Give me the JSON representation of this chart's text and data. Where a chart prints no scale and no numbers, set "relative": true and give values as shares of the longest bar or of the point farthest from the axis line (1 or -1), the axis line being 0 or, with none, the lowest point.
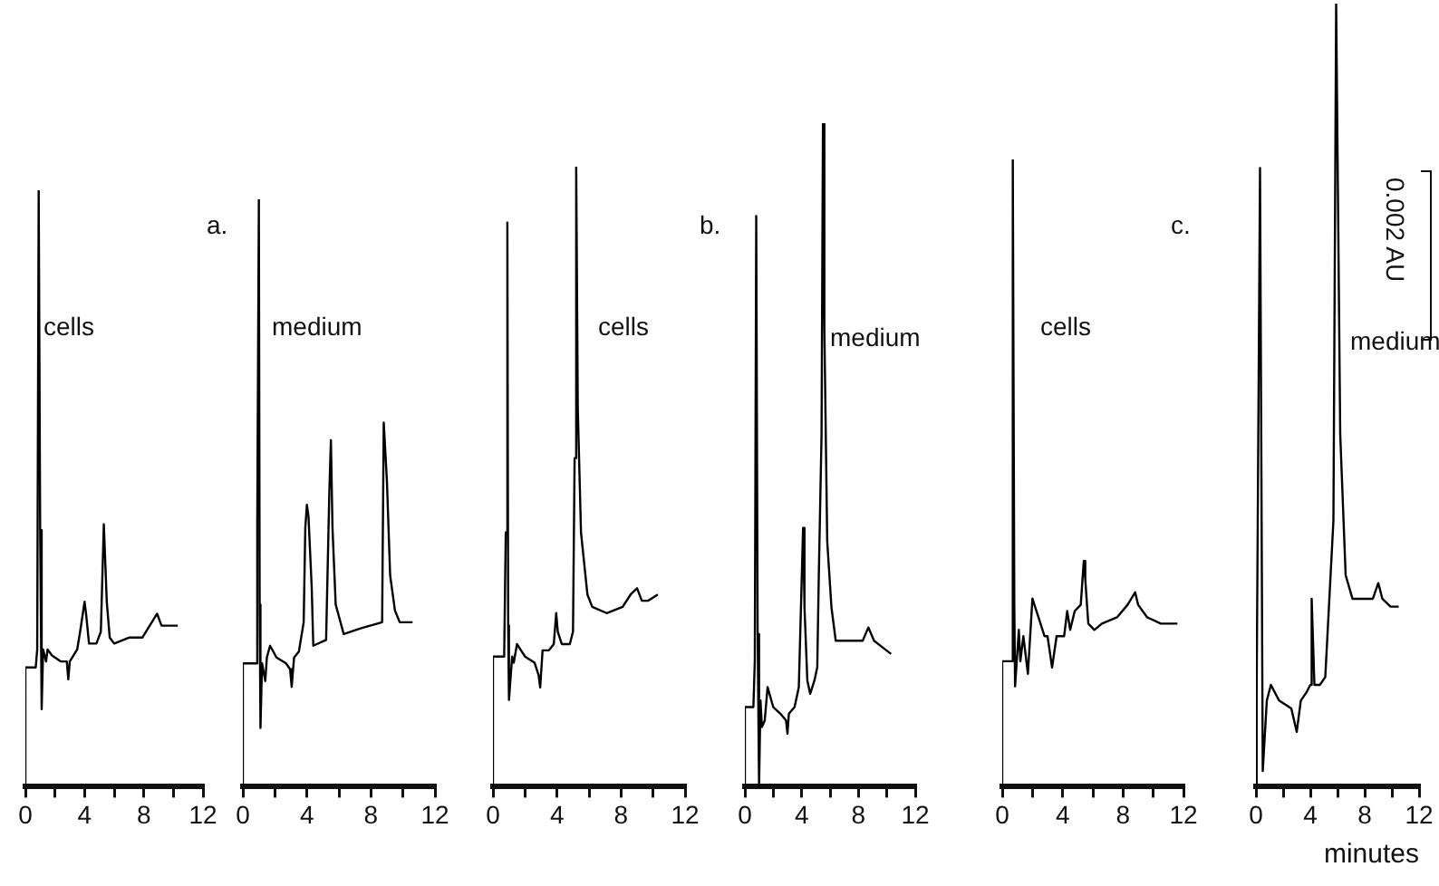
{
  "chart_data": [
    {
      "type": "line",
      "relative": true,
      "x": [
        0,
        0,
        0.7,
        0.8,
        0.9,
        1.0,
        1.1,
        1.2,
        1.4,
        1.5,
        1.8,
        2.4,
        2.8,
        2.9,
        3.0,
        3.5,
        3.7,
        4.0,
        4.1,
        4.3,
        4.8,
        5.1,
        5.3,
        5.5,
        5.7,
        6.0,
        7.0,
        7.9,
        8.4,
        8.9,
        9.2,
        9.5,
        10.3
      ],
      "series": [
        {
          "color": "#000000",
          "values": [
            0,
            0.2,
            0.2,
            0.23,
            1,
            0.43,
            0.13,
            0.23,
            0.21,
            0.23,
            0.22,
            0.21,
            0.21,
            0.18,
            0.21,
            0.23,
            0.26,
            0.31,
            0.29,
            0.24,
            0.24,
            0.26,
            0.44,
            0.31,
            0.25,
            0.24,
            0.25,
            0.25,
            0.27,
            0.29,
            0.27,
            0.27,
            0.27
          ]
        }
      ],
      "xlim": [
        0,
        12
      ],
      "xticks": [
        0,
        {
          "value": 2,
          "label": null
        },
        4,
        {
          "value": 6,
          "label": null
        },
        8,
        {
          "value": 10,
          "label": null
        },
        12
      ],
      "grid": false,
      "legend": false,
      "tick_labels": "x",
      "annotations": [
        "cells",
        "a."
      ]
    },
    {
      "type": "line",
      "relative": true,
      "x": [
        0,
        0,
        0.8,
        0.9,
        1.0,
        1.05,
        1.1,
        1.2,
        1.4,
        1.5,
        1.7,
        2.1,
        2.7,
        2.95,
        3.05,
        3.2,
        3.5,
        3.8,
        3.9,
        4.0,
        4.1,
        4.3,
        4.4,
        5.2,
        5.4,
        5.5,
        5.6,
        5.8,
        6.3,
        7.4,
        8.7,
        8.8,
        9.0,
        9.2,
        9.5,
        9.8,
        10.6
      ],
      "series": [
        {
          "color": "#000000",
          "values": [
            0,
            0.21,
            0.21,
            0.45,
            1,
            0.31,
            0.1,
            0.21,
            0.18,
            0.22,
            0.24,
            0.22,
            0.21,
            0.2,
            0.17,
            0.22,
            0.23,
            0.28,
            0.44,
            0.48,
            0.46,
            0.34,
            0.24,
            0.25,
            0.5,
            0.59,
            0.44,
            0.31,
            0.26,
            0.27,
            0.28,
            0.62,
            0.52,
            0.36,
            0.3,
            0.28,
            0.28
          ]
        }
      ],
      "xlim": [
        0,
        12
      ],
      "xticks": [
        0,
        {
          "value": 2,
          "label": null
        },
        4,
        {
          "value": 6,
          "label": null
        },
        8,
        {
          "value": 10,
          "label": null
        },
        12
      ],
      "grid": false,
      "legend": false,
      "tick_labels": "x",
      "annotations": [
        "medium"
      ]
    },
    {
      "type": "line",
      "relative": true,
      "x": [
        0,
        0,
        0.7,
        0.8,
        0.9,
        0.95,
        1.0,
        1.2,
        1.3,
        1.5,
        2.0,
        2.6,
        2.85,
        2.95,
        3.1,
        3.5,
        3.8,
        3.95,
        4.05,
        4.3,
        4.8,
        5.0,
        5.1,
        5.2,
        5.3,
        5.5,
        5.9,
        6.2,
        7.1,
        8.1,
        8.6,
        9.0,
        9.3,
        9.7,
        10.3
      ],
      "series": [
        {
          "color": "#000000",
          "values": [
            0,
            0.21,
            0.21,
            0.41,
            0.91,
            0.26,
            0.14,
            0.21,
            0.2,
            0.23,
            0.21,
            0.2,
            0.18,
            0.16,
            0.22,
            0.22,
            0.23,
            0.28,
            0.25,
            0.23,
            0.23,
            0.25,
            0.53,
            1,
            0.61,
            0.41,
            0.31,
            0.29,
            0.28,
            0.29,
            0.31,
            0.32,
            0.3,
            0.3,
            0.31
          ]
        }
      ],
      "xlim": [
        0,
        12
      ],
      "xticks": [
        0,
        {
          "value": 2,
          "label": null
        },
        4,
        {
          "value": 6,
          "label": null
        },
        8,
        {
          "value": 10,
          "label": null
        },
        12
      ],
      "grid": false,
      "legend": false,
      "tick_labels": "x",
      "annotations": [
        "cells",
        "b."
      ]
    },
    {
      "type": "line",
      "relative": true,
      "x": [
        0,
        0,
        0.6,
        0.7,
        0.8,
        0.9,
        1.0,
        1.1,
        1.2,
        1.4,
        1.6,
        2.0,
        2.5,
        2.9,
        3.0,
        3.1,
        3.5,
        3.8,
        3.9,
        4.1,
        4.2,
        4.4,
        4.6,
        4.9,
        5.1,
        5.2,
        5.4,
        5.5,
        5.6,
        5.8,
        6.1,
        6.4,
        7.4,
        8.3,
        8.7,
        9.1,
        9.7,
        10.3
      ],
      "series": [
        {
          "color": "#000000",
          "values": [
            0,
            0.12,
            0.12,
            0.19,
            0.86,
            0.23,
            0,
            0.13,
            0.09,
            0.1,
            0.15,
            0.12,
            0.11,
            0.1,
            0.08,
            0.11,
            0.12,
            0.15,
            0.23,
            0.39,
            0.27,
            0.16,
            0.14,
            0.16,
            0.18,
            0.31,
            0.53,
            1,
            0.69,
            0.37,
            0.27,
            0.22,
            0.22,
            0.22,
            0.24,
            0.22,
            0.21,
            0.2
          ]
        }
      ],
      "xlim": [
        0,
        12
      ],
      "xticks": [
        0,
        {
          "value": 2,
          "label": null
        },
        4,
        {
          "value": 6,
          "label": null
        },
        8,
        {
          "value": 10,
          "label": null
        },
        12
      ],
      "grid": false,
      "legend": false,
      "tick_labels": "x",
      "annotations": [
        "medium"
      ]
    },
    {
      "type": "line",
      "relative": true,
      "x": [
        0,
        0,
        0.65,
        0.7,
        0.8,
        0.85,
        0.9,
        1.1,
        1.2,
        1.4,
        1.7,
        2.0,
        2.4,
        2.8,
        3.0,
        3.1,
        3.3,
        3.6,
        3.9,
        4.1,
        4.3,
        4.5,
        4.8,
        5.2,
        5.4,
        5.5,
        5.7,
        6.1,
        6.6,
        7.6,
        8.3,
        8.8,
        9.0,
        9.6,
        10.5,
        11.3,
        11.6
      ],
      "series": [
        {
          "color": "#000000",
          "values": [
            0,
            0.2,
            0.2,
            1,
            0.29,
            0.16,
            0.16,
            0.25,
            0.2,
            0.24,
            0.18,
            0.3,
            0.27,
            0.24,
            0.24,
            0.24,
            0.19,
            0.24,
            0.24,
            0.24,
            0.28,
            0.25,
            0.28,
            0.29,
            0.36,
            0.33,
            0.26,
            0.25,
            0.26,
            0.27,
            0.29,
            0.31,
            0.29,
            0.27,
            0.26,
            0.26,
            0.26
          ]
        }
      ],
      "xlim": [
        0,
        12
      ],
      "xticks": [
        0,
        {
          "value": 2,
          "label": null
        },
        4,
        {
          "value": 6,
          "label": null
        },
        8,
        {
          "value": 10,
          "label": null
        },
        12
      ],
      "grid": false,
      "legend": false,
      "tick_labels": "x",
      "annotations": [
        "cells",
        "c."
      ]
    },
    {
      "type": "line",
      "relative": true,
      "x": [
        0,
        0,
        0.1,
        0.3,
        0.5,
        0.8,
        1.1,
        1.7,
        2.6,
        3.0,
        3.3,
        3.7,
        4.0,
        4.1,
        4.3,
        4.7,
        5.1,
        5.7,
        5.9,
        6.2,
        6.6,
        7.1,
        7.9,
        8.6,
        9.0,
        9.3,
        9.9,
        10.5
      ],
      "series": [
        {
          "color": "#000000",
          "values": [
            0,
            0.12,
            0.12,
            0.79,
            0.02,
            0.11,
            0.13,
            0.11,
            0.1,
            0.07,
            0.11,
            0.12,
            0.13,
            0.24,
            0.13,
            0.13,
            0.14,
            0.34,
            1,
            0.45,
            0.27,
            0.24,
            0.24,
            0.24,
            0.26,
            0.24,
            0.23,
            0.23
          ]
        }
      ],
      "xlim": [
        0,
        12
      ],
      "xticks": [
        0,
        {
          "value": 2,
          "label": null
        },
        4,
        {
          "value": 6,
          "label": null
        },
        8,
        {
          "value": 10,
          "label": null
        },
        12
      ],
      "grid": false,
      "legend": false,
      "tick_labels": "x",
      "xlabel": "minutes",
      "annotations": [
        "medium",
        "0.002 AU"
      ]
    }
  ]
}
